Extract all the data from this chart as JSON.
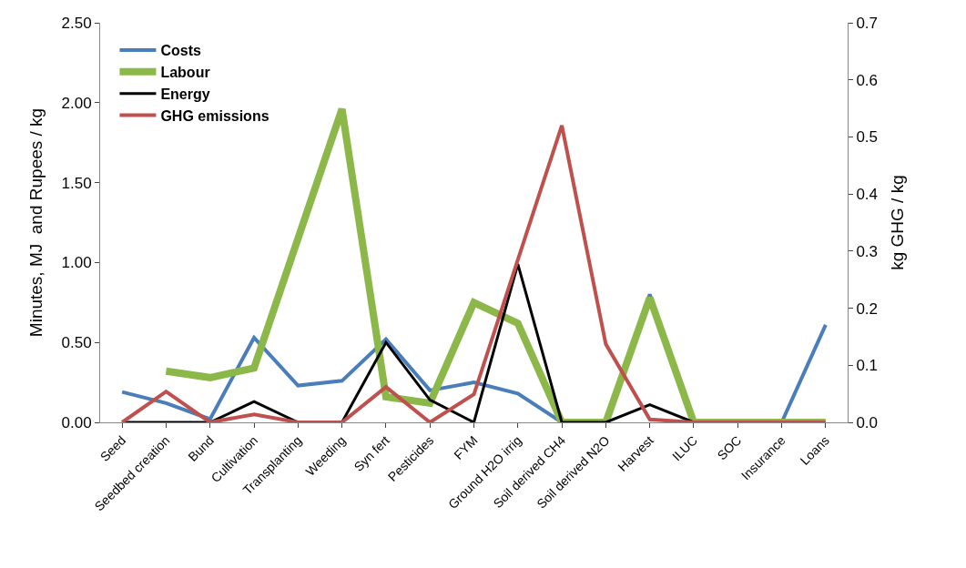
{
  "chart_data": {
    "type": "line",
    "categories": [
      "Seed",
      "Seedbed creation",
      "Bund",
      "Cultivation",
      "Transplanting",
      "Weeding",
      "Syn fert",
      "Pesticides",
      "FYM",
      "Ground H2O irrig",
      "Soil derived CH4",
      "Soil derived N2O",
      "Harvest",
      "ILUC",
      "SOC",
      "Insurance",
      "Loans"
    ],
    "series": [
      {
        "name": "Costs",
        "color": "#4a7ebb",
        "values": [
          0.19,
          0.12,
          0.02,
          0.53,
          0.23,
          0.26,
          0.52,
          0.2,
          0.25,
          0.18,
          0,
          0,
          0.8,
          0,
          0,
          0,
          0.61
        ]
      },
      {
        "name": "Labour",
        "color": "#8cb84a",
        "values": [
          null,
          0.32,
          0.28,
          0.34,
          1.15,
          1.96,
          0.16,
          0.12,
          0.75,
          0.62,
          0,
          0,
          0.78,
          0,
          0,
          0,
          0
        ]
      },
      {
        "name": "Energy",
        "color": "#000000",
        "values": [
          0,
          0,
          0,
          0.13,
          0,
          0,
          0.5,
          0.14,
          0,
          0.99,
          0,
          0,
          0.11,
          0,
          0,
          null,
          null
        ]
      },
      {
        "name": "GHG emissions",
        "color": "#c0504d",
        "axis": "y2",
        "values": [
          0,
          0.054,
          0,
          0.014,
          0,
          0,
          0.062,
          0,
          0.049,
          0.285,
          0.52,
          0.137,
          0.005,
          0,
          0,
          0,
          0
        ]
      }
    ],
    "ylabel": "Minutes, MJ  and Rupees / kg",
    "y2label": "kg GHG / kg",
    "ylim": [
      0,
      2.5
    ],
    "yticks": [
      {
        "value": 0,
        "label": "0.00"
      },
      {
        "value": 0.5,
        "label": "0.50"
      },
      {
        "value": 1,
        "label": "1.00"
      },
      {
        "value": 1.5,
        "label": "1.50"
      },
      {
        "value": 2,
        "label": "2.00"
      },
      {
        "value": 2.5,
        "label": "2.50"
      }
    ],
    "y2lim": [
      0,
      0.7
    ],
    "y2ticks": [
      {
        "value": 0,
        "label": "0.0"
      },
      0.1,
      0.2,
      0.3,
      0.4,
      0.5,
      0.6,
      0.7
    ],
    "legend": "top left",
    "marker": "none",
    "line_style": "solid"
  }
}
